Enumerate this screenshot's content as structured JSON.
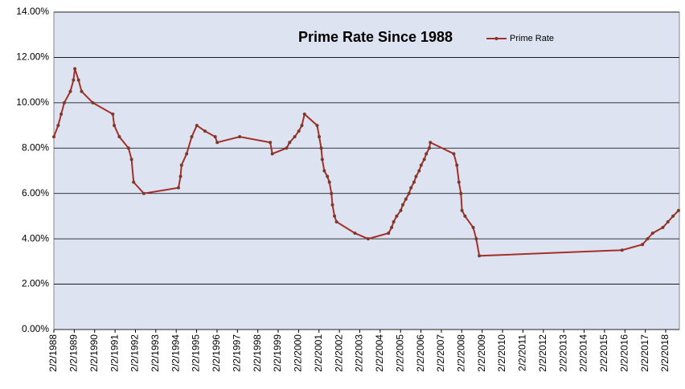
{
  "chart_data": {
    "type": "line",
    "title": "Prime Rate Since 1988",
    "x": [
      1988.09,
      1988.3,
      1988.45,
      1988.6,
      1988.9,
      1989.05,
      1989.12,
      1989.3,
      1989.45,
      1990.0,
      1990.98,
      1991.05,
      1991.3,
      1991.75,
      1991.9,
      1992.0,
      1992.5,
      1994.2,
      1994.3,
      1994.35,
      1994.6,
      1994.85,
      1995.1,
      1995.5,
      1996.0,
      1996.1,
      1997.2,
      1998.7,
      1998.8,
      1999.5,
      1999.65,
      1999.9,
      2000.1,
      2000.25,
      2000.38,
      2001.0,
      2001.1,
      2001.2,
      2001.25,
      2001.35,
      2001.5,
      2001.6,
      2001.7,
      2001.75,
      2001.85,
      2001.95,
      2002.85,
      2003.5,
      2004.5,
      2004.65,
      2004.75,
      2004.9,
      2005.1,
      2005.2,
      2005.35,
      2005.5,
      2005.6,
      2005.75,
      2005.85,
      2006.0,
      2006.1,
      2006.25,
      2006.35,
      2006.5,
      2006.55,
      2007.7,
      2007.85,
      2007.95,
      2008.05,
      2008.1,
      2008.25,
      2008.65,
      2008.8,
      2008.95,
      2015.95,
      2016.95,
      2017.2,
      2017.45,
      2017.95,
      2018.2,
      2018.45,
      2018.72
    ],
    "series": [
      {
        "name": "Prime Rate",
        "color": "#a3302a",
        "values": [
          8.5,
          9.0,
          9.5,
          10.0,
          10.5,
          11.0,
          11.5,
          11.0,
          10.5,
          10.0,
          9.5,
          9.0,
          8.5,
          8.0,
          7.5,
          6.5,
          6.0,
          6.25,
          6.75,
          7.25,
          7.75,
          8.5,
          9.0,
          8.75,
          8.5,
          8.25,
          8.5,
          8.25,
          7.75,
          8.0,
          8.25,
          8.5,
          8.75,
          9.0,
          9.5,
          9.0,
          8.5,
          8.0,
          7.5,
          7.0,
          6.75,
          6.5,
          6.0,
          5.5,
          5.0,
          4.75,
          4.25,
          4.0,
          4.25,
          4.5,
          4.75,
          5.0,
          5.25,
          5.5,
          5.75,
          6.0,
          6.25,
          6.5,
          6.75,
          7.0,
          7.25,
          7.5,
          7.75,
          8.0,
          8.25,
          7.75,
          7.25,
          6.5,
          6.0,
          5.25,
          5.0,
          4.5,
          4.0,
          3.25,
          3.5,
          3.75,
          4.0,
          4.25,
          4.5,
          4.75,
          5.0,
          5.25
        ]
      }
    ],
    "xlim": [
      1988.09,
      2018.76
    ],
    "xticks": [
      {
        "value": 1988.09,
        "label": "2/2/1988"
      },
      {
        "value": 1989.09,
        "label": "2/2/1989"
      },
      {
        "value": 1990.09,
        "label": "2/2/1990"
      },
      {
        "value": 1991.09,
        "label": "2/2/1991"
      },
      {
        "value": 1992.09,
        "label": "2/2/1992"
      },
      {
        "value": 1993.09,
        "label": "2/2/1993"
      },
      {
        "value": 1994.09,
        "label": "2/2/1994"
      },
      {
        "value": 1995.09,
        "label": "2/2/1995"
      },
      {
        "value": 1996.09,
        "label": "2/2/1996"
      },
      {
        "value": 1997.09,
        "label": "2/2/1997"
      },
      {
        "value": 1998.09,
        "label": "2/2/1998"
      },
      {
        "value": 1999.09,
        "label": "2/2/1999"
      },
      {
        "value": 2000.09,
        "label": "2/2/2000"
      },
      {
        "value": 2001.09,
        "label": "2/2/2001"
      },
      {
        "value": 2002.09,
        "label": "2/2/2002"
      },
      {
        "value": 2003.09,
        "label": "2/2/2003"
      },
      {
        "value": 2004.09,
        "label": "2/2/2004"
      },
      {
        "value": 2005.09,
        "label": "2/2/2005"
      },
      {
        "value": 2006.09,
        "label": "2/2/2006"
      },
      {
        "value": 2007.09,
        "label": "2/2/2007"
      },
      {
        "value": 2008.09,
        "label": "2/2/2008"
      },
      {
        "value": 2009.09,
        "label": "2/2/2009"
      },
      {
        "value": 2010.09,
        "label": "2/2/2010"
      },
      {
        "value": 2011.09,
        "label": "2/2/2011"
      },
      {
        "value": 2012.09,
        "label": "2/2/2012"
      },
      {
        "value": 2013.09,
        "label": "2/2/2013"
      },
      {
        "value": 2014.09,
        "label": "2/2/2014"
      },
      {
        "value": 2015.09,
        "label": "2/2/2015"
      },
      {
        "value": 2016.09,
        "label": "2/2/2016"
      },
      {
        "value": 2017.09,
        "label": "2/2/2017"
      },
      {
        "value": 2018.09,
        "label": "2/2/2018"
      }
    ],
    "ylim": [
      0,
      14
    ],
    "yticks": [
      {
        "value": 0,
        "label": "0.00%"
      },
      {
        "value": 2,
        "label": "2.00%"
      },
      {
        "value": 4,
        "label": "4.00%"
      },
      {
        "value": 6,
        "label": "6.00%"
      },
      {
        "value": 8,
        "label": "8.00%"
      },
      {
        "value": 10,
        "label": "10.00%"
      },
      {
        "value": 12,
        "label": "12.00%"
      },
      {
        "value": 14,
        "label": "14.00%"
      }
    ],
    "grid": true,
    "legend": "top-right"
  }
}
